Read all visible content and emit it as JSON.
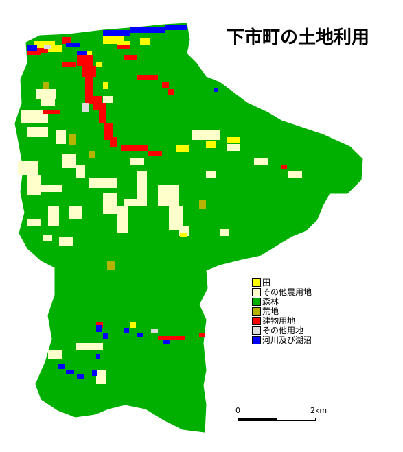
{
  "title": "下市町の土地利用",
  "colors": {
    "paddy": "#FFFF00",
    "other_farmland": "#FFFFCC",
    "forest": "#00B000",
    "wasteland": "#B4B400",
    "building": "#FF0000",
    "other_land": "#DCDCDC",
    "water": "#0000FF"
  },
  "legend": [
    {
      "label": "田",
      "color": "#FFFF00"
    },
    {
      "label": "その他農用地",
      "color": "#FFFFCC"
    },
    {
      "label": "森林",
      "color": "#00B000"
    },
    {
      "label": "荒地",
      "color": "#B4B400"
    },
    {
      "label": "建物用地",
      "color": "#FF0000"
    },
    {
      "label": "その他用地",
      "color": "#DCDCDC"
    },
    {
      "label": "河川及び湖沼",
      "color": "#0000FF"
    }
  ],
  "scale": {
    "left_label": "0",
    "right_label": "2km"
  }
}
